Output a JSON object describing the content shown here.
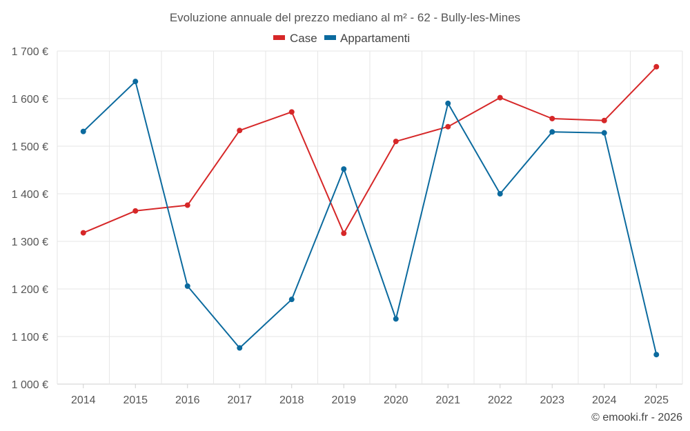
{
  "chart_data": {
    "type": "line",
    "title": "Evoluzione annuale del prezzo mediano al m² - 62 - Bully-les-Mines",
    "categories": [
      "2014",
      "2015",
      "2016",
      "2017",
      "2018",
      "2019",
      "2020",
      "2021",
      "2022",
      "2023",
      "2024",
      "2025"
    ],
    "series": [
      {
        "name": "Case",
        "color": "#d62728",
        "values": [
          1318,
          1364,
          1376,
          1533,
          1572,
          1317,
          1510,
          1541,
          1602,
          1558,
          1554,
          1667
        ]
      },
      {
        "name": "Appartamenti",
        "color": "#0b6a9e",
        "values": [
          1531,
          1636,
          1206,
          1076,
          1178,
          1452,
          1137,
          1590,
          1400,
          1530,
          1528,
          1062
        ]
      }
    ],
    "ylim": [
      1000,
      1700
    ],
    "yticks": [
      1000,
      1100,
      1200,
      1300,
      1400,
      1500,
      1600,
      1700
    ],
    "ytick_labels": [
      "1 000 €",
      "1 100 €",
      "1 200 €",
      "1 300 €",
      "1 400 €",
      "1 500 €",
      "1 600 €",
      "1 700 €"
    ],
    "grid": true,
    "legend_position": "top-center",
    "xlabel": "",
    "ylabel": ""
  },
  "credit": "© emooki.fr - 2026"
}
